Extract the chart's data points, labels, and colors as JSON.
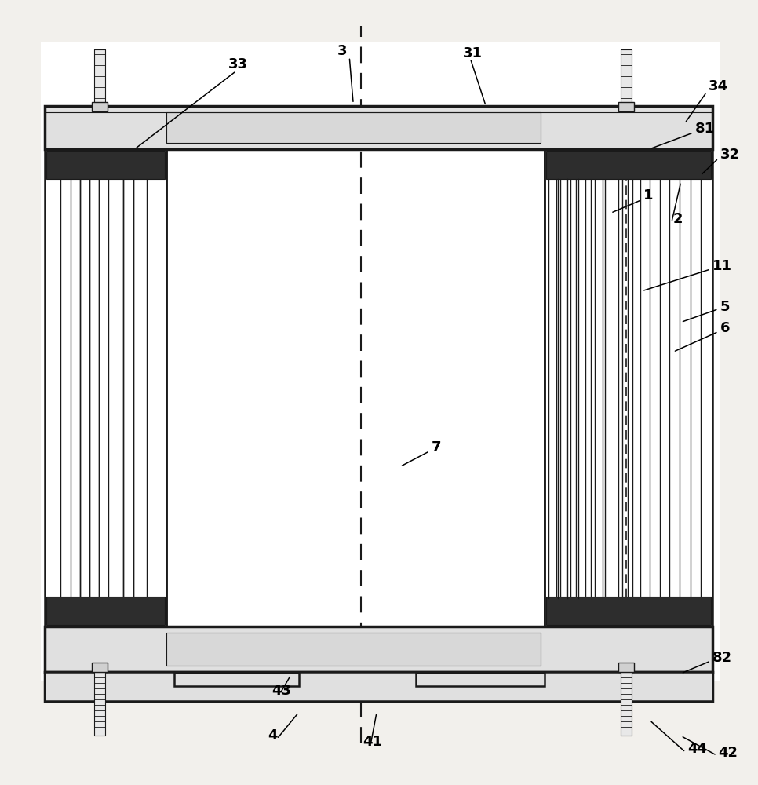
{
  "bg_color": "#f2f0ec",
  "lc": "#1a1a1a",
  "white": "#ffffff",
  "dark": "#2d2d2d",
  "mid_gray": "#888888",
  "light_gray": "#d8d8d8",
  "plate_gray": "#e0e0e0",
  "col_gray": "#c8c8c8",
  "label_fs": 13
}
